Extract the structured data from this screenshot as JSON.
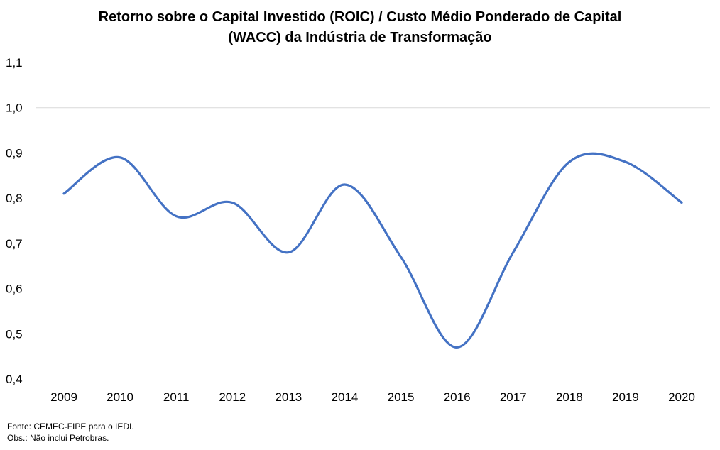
{
  "chart_data": {
    "type": "line",
    "title": "Retorno sobre o Capital Investido (ROIC) / Custo Médio Ponderado de Capital\n(WACC) da Indústria de Transformação",
    "xlabel": "",
    "ylabel": "",
    "x": [
      "2009",
      "2010",
      "2011",
      "2012",
      "2013",
      "2014",
      "2015",
      "2016",
      "2017",
      "2018",
      "2019",
      "2020"
    ],
    "series": [
      {
        "values": [
          0.81,
          0.89,
          0.76,
          0.79,
          0.68,
          0.83,
          0.67,
          0.47,
          0.68,
          0.88,
          0.88,
          0.79
        ]
      }
    ],
    "y_ticks": [
      "0,4",
      "0,5",
      "0,6",
      "0,7",
      "0,8",
      "0,9",
      "1,0",
      "1,1"
    ],
    "ylim": [
      0.4,
      1.1
    ],
    "grid": "single horizontal line at 1,0",
    "legend": "none",
    "line_color": "#4472C4"
  },
  "notes": {
    "source": "Fonte: CEMEC-FIPE para o IEDI.",
    "obs": "Obs.: Não inclui Petrobras."
  }
}
